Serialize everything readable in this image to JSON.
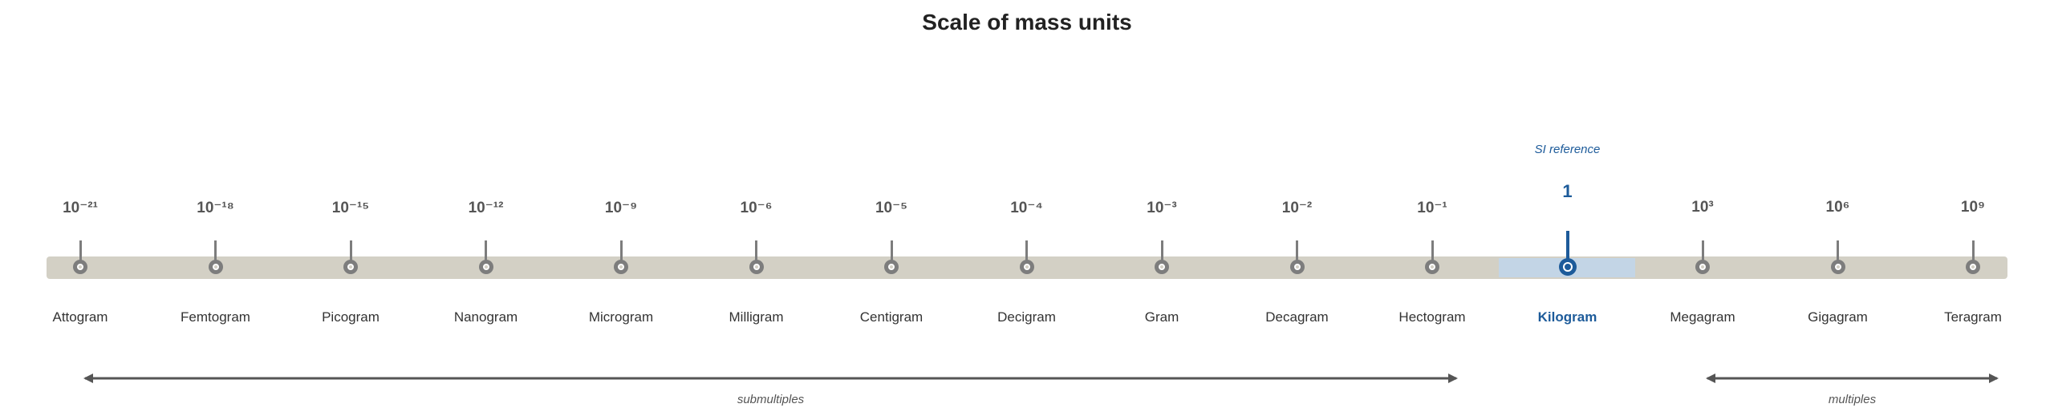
{
  "title": "Scale of mass units",
  "reference": {
    "label": "SI reference",
    "index": 11
  },
  "units": [
    {
      "exponent": "10⁻²¹",
      "name": "Attogram"
    },
    {
      "exponent": "10⁻¹⁸",
      "name": "Femtogram"
    },
    {
      "exponent": "10⁻¹⁵",
      "name": "Picogram"
    },
    {
      "exponent": "10⁻¹²",
      "name": "Nanogram"
    },
    {
      "exponent": "10⁻⁹",
      "name": "Microgram"
    },
    {
      "exponent": "10⁻⁶",
      "name": "Milligram"
    },
    {
      "exponent": "10⁻⁵",
      "name": "Centigram"
    },
    {
      "exponent": "10⁻⁴",
      "name": "Decigram"
    },
    {
      "exponent": "10⁻³",
      "name": "Gram"
    },
    {
      "exponent": "10⁻²",
      "name": "Decagram"
    },
    {
      "exponent": "10⁻¹",
      "name": "Hectogram"
    },
    {
      "exponent": "1",
      "name": "Kilogram"
    },
    {
      "exponent": "10³",
      "name": "Megagram"
    },
    {
      "exponent": "10⁶",
      "name": "Gigagram"
    },
    {
      "exponent": "10⁹",
      "name": "Teragram"
    }
  ],
  "groups": [
    {
      "label": "submultiples",
      "from": 0,
      "to": 10
    },
    {
      "label": "multiples",
      "from": 12,
      "to": 14
    }
  ],
  "colors": {
    "accent": "#1d5b9a",
    "track": "#d3d0c5",
    "marker": "#7d7d7d",
    "highlight": "#c3d5e6"
  }
}
